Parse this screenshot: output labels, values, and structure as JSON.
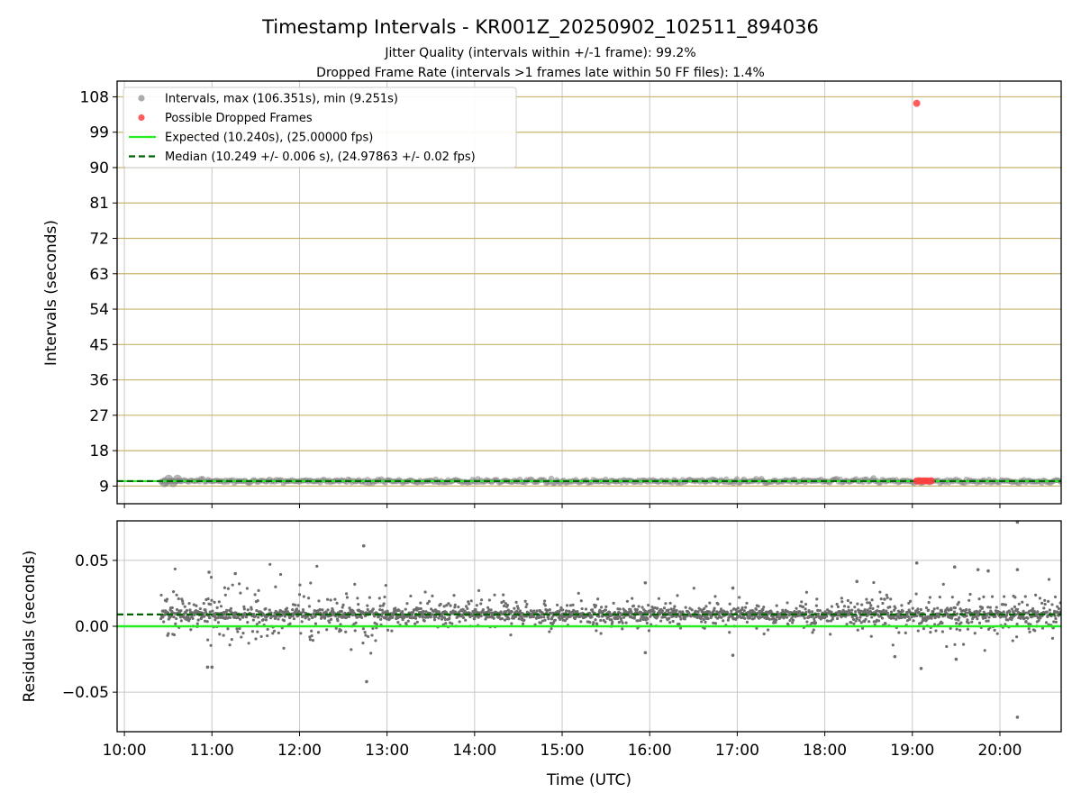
{
  "title": "Timestamp Intervals - KR001Z_20250902_102511_894036",
  "subtitle_lines": [
    "Jitter Quality (intervals within +/-1 frame): 99.2%",
    "Dropped Frame Rate (intervals >1 frames late within 50 FF files): 1.4%"
  ],
  "colors": {
    "intervals": "#808080",
    "dropped": "#ff4040",
    "expected": "#22ee22",
    "median": "#006400",
    "hgrid_top": "#c8b46e",
    "grid": "#c8c8c8"
  },
  "chart_data": [
    {
      "type": "scatter",
      "ylabel": "Intervals (seconds)",
      "y_ticks": [
        "9",
        "18",
        "27",
        "36",
        "45",
        "54",
        "63",
        "72",
        "81",
        "90",
        "99",
        "108"
      ],
      "ylim": [
        4.5,
        112
      ],
      "xlim": [
        "09:55",
        "20:42"
      ],
      "grid": true,
      "legend_position": "top-left",
      "legend": [
        {
          "label": "Intervals, max (106.351s), min (9.251s)",
          "kind": "marker",
          "color": "#9e9e9e"
        },
        {
          "label": "Possible Dropped Frames",
          "kind": "marker",
          "color": "#ff4040"
        },
        {
          "label": "Expected (10.240s), (25.00000 fps)",
          "kind": "line",
          "color": "#22ee22"
        },
        {
          "label": "Median (10.249 +/- 0.006 s), (24.97863 +/- 0.02 fps)",
          "kind": "dashed",
          "color": "#006400"
        }
      ],
      "series": [
        {
          "name": "Intervals, max (106.351s), min (9.251s)",
          "x_range": [
            "10:25",
            "20:42"
          ],
          "y_typical": 10.25,
          "y_max": 106.351,
          "y_min": 9.251
        },
        {
          "name": "Possible Dropped Frames",
          "points": [
            {
              "x": "19:03",
              "y": 106.35
            },
            {
              "x": "19:03",
              "y": 10.3
            },
            {
              "x": "19:05",
              "y": 10.3
            },
            {
              "x": "19:07",
              "y": 10.3
            },
            {
              "x": "19:09",
              "y": 10.3
            },
            {
              "x": "19:11",
              "y": 10.3
            },
            {
              "x": "19:13",
              "y": 10.3
            }
          ]
        },
        {
          "name": "Expected (10.240s), (25.00000 fps)",
          "y": 10.24
        },
        {
          "name": "Median (10.249 +/- 0.006 s), (24.97863 +/- 0.02 fps)",
          "y": 10.249
        }
      ]
    },
    {
      "type": "scatter",
      "ylabel": "Residuals (seconds)",
      "xlabel": "Time (UTC)",
      "y_ticks": [
        "0.05",
        "0.00",
        "−0.05"
      ],
      "y_tick_values": [
        0.05,
        0.0,
        -0.05
      ],
      "ylim": [
        -0.08,
        0.08
      ],
      "x_ticks": [
        "10:00",
        "11:00",
        "12:00",
        "13:00",
        "14:00",
        "15:00",
        "16:00",
        "17:00",
        "18:00",
        "19:00",
        "20:00"
      ],
      "xlim": [
        "09:55",
        "20:42"
      ],
      "grid": true,
      "expected_residual": 0.0,
      "median_residual": 0.009,
      "residual_spread": [
        {
          "from": "10:25",
          "to": "13:00",
          "sd": 0.012
        },
        {
          "from": "13:00",
          "to": "18:30",
          "sd": 0.0055
        },
        {
          "from": "18:30",
          "to": "20:42",
          "sd": 0.009
        }
      ],
      "notable_points": [
        {
          "x": "12:44",
          "y": 0.061
        },
        {
          "x": "12:46",
          "y": -0.042
        },
        {
          "x": "20:12",
          "y": 0.079
        },
        {
          "x": "20:12",
          "y": -0.069
        },
        {
          "x": "19:03",
          "y": 0.048
        },
        {
          "x": "19:06",
          "y": -0.032
        },
        {
          "x": "19:29",
          "y": 0.045
        },
        {
          "x": "19:30",
          "y": -0.025
        },
        {
          "x": "19:45",
          "y": 0.043
        },
        {
          "x": "19:52",
          "y": 0.042
        },
        {
          "x": "20:12",
          "y": 0.043
        },
        {
          "x": "10:57",
          "y": -0.031
        },
        {
          "x": "11:00",
          "y": -0.031
        },
        {
          "x": "10:58",
          "y": 0.041
        },
        {
          "x": "11:16",
          "y": 0.04
        },
        {
          "x": "15:57",
          "y": 0.033
        },
        {
          "x": "15:57",
          "y": -0.02
        },
        {
          "x": "16:57",
          "y": -0.022
        },
        {
          "x": "16:57",
          "y": 0.029
        },
        {
          "x": "18:48",
          "y": -0.023
        },
        {
          "x": "18:22",
          "y": 0.034
        }
      ]
    }
  ]
}
